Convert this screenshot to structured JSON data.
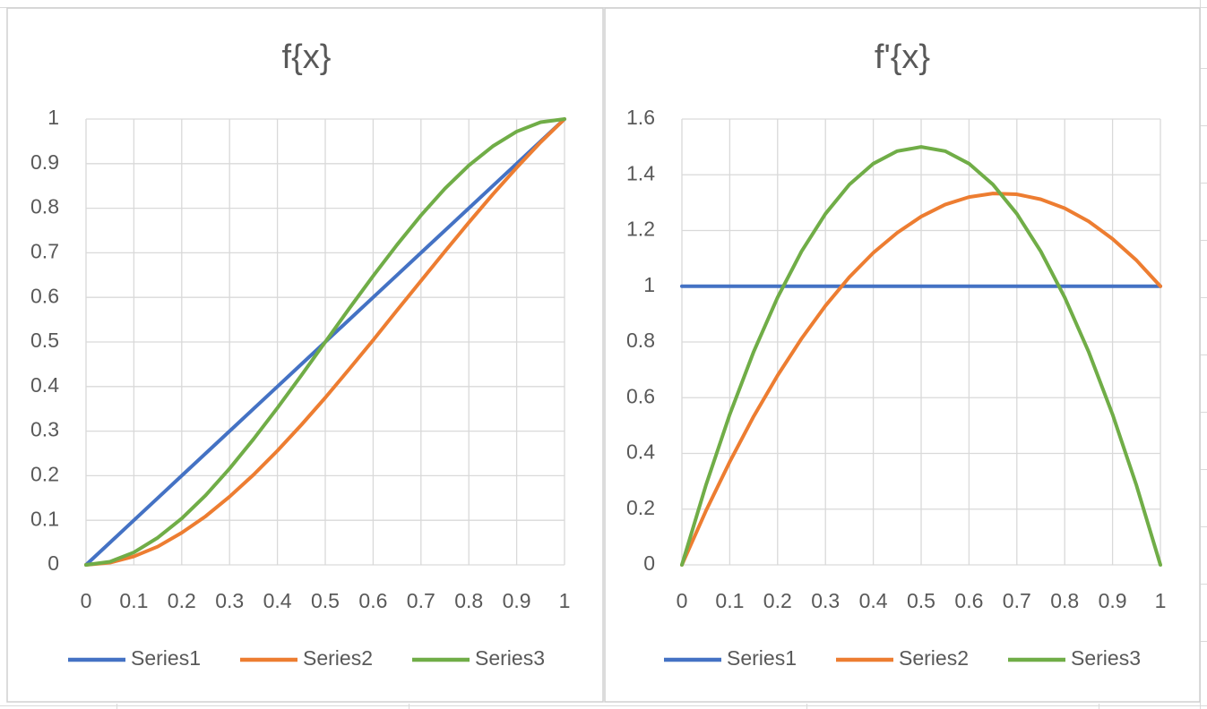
{
  "chart_data": [
    {
      "type": "line",
      "title": "f{x}",
      "xlabel": "",
      "ylabel": "",
      "xlim": [
        0,
        1
      ],
      "ylim": [
        0,
        1
      ],
      "x_ticks": [
        "0",
        "0.1",
        "0.2",
        "0.3",
        "0.4",
        "0.5",
        "0.6",
        "0.7",
        "0.8",
        "0.9",
        "1"
      ],
      "y_ticks": [
        "0",
        "0.1",
        "0.2",
        "0.3",
        "0.4",
        "0.5",
        "0.6",
        "0.7",
        "0.8",
        "0.9",
        "1"
      ],
      "grid": true,
      "legend_position": "bottom",
      "x": [
        0,
        0.05,
        0.1,
        0.15,
        0.2,
        0.25,
        0.3,
        0.35,
        0.4,
        0.45,
        0.5,
        0.55,
        0.6,
        0.65,
        0.7,
        0.75,
        0.8,
        0.85,
        0.9,
        0.95,
        1
      ],
      "series": [
        {
          "name": "Series1",
          "color": "#4472C4",
          "values": [
            0,
            0.05,
            0.1,
            0.15,
            0.2,
            0.25,
            0.3,
            0.35,
            0.4,
            0.45,
            0.5,
            0.55,
            0.6,
            0.65,
            0.7,
            0.75,
            0.8,
            0.85,
            0.9,
            0.95,
            1
          ]
        },
        {
          "name": "Series2",
          "color": "#ED7D31",
          "values": [
            0,
            0.005,
            0.019,
            0.041,
            0.072,
            0.109,
            0.153,
            0.202,
            0.256,
            0.314,
            0.375,
            0.439,
            0.504,
            0.571,
            0.637,
            0.703,
            0.768,
            0.831,
            0.891,
            0.948,
            1
          ]
        },
        {
          "name": "Series3",
          "color": "#70AD47",
          "values": [
            0,
            0.007,
            0.028,
            0.061,
            0.104,
            0.156,
            0.216,
            0.282,
            0.352,
            0.425,
            0.5,
            0.575,
            0.648,
            0.718,
            0.784,
            0.844,
            0.896,
            0.939,
            0.972,
            0.993,
            1
          ]
        }
      ]
    },
    {
      "type": "line",
      "title": "f'{x}",
      "xlabel": "",
      "ylabel": "",
      "xlim": [
        0,
        1
      ],
      "ylim": [
        0,
        1.6
      ],
      "x_ticks": [
        "0",
        "0.1",
        "0.2",
        "0.3",
        "0.4",
        "0.5",
        "0.6",
        "0.7",
        "0.8",
        "0.9",
        "1"
      ],
      "y_ticks": [
        "0",
        "0.2",
        "0.4",
        "0.6",
        "0.8",
        "1",
        "1.2",
        "1.4",
        "1.6"
      ],
      "grid": true,
      "legend_position": "bottom",
      "x": [
        0,
        0.05,
        0.1,
        0.15,
        0.2,
        0.25,
        0.3,
        0.35,
        0.4,
        0.45,
        0.5,
        0.55,
        0.6,
        0.65,
        0.7,
        0.75,
        0.8,
        0.85,
        0.9,
        0.95,
        1
      ],
      "series": [
        {
          "name": "Series1",
          "color": "#4472C4",
          "values": [
            1,
            1,
            1,
            1,
            1,
            1,
            1,
            1,
            1,
            1,
            1,
            1,
            1,
            1,
            1,
            1,
            1,
            1,
            1,
            1,
            1
          ]
        },
        {
          "name": "Series2",
          "color": "#ED7D31",
          "values": [
            0,
            0.193,
            0.37,
            0.533,
            0.68,
            0.812,
            0.93,
            1.033,
            1.12,
            1.192,
            1.25,
            1.293,
            1.32,
            1.333,
            1.33,
            1.312,
            1.28,
            1.233,
            1.17,
            1.093,
            1
          ]
        },
        {
          "name": "Series3",
          "color": "#70AD47",
          "values": [
            0,
            0.285,
            0.54,
            0.765,
            0.96,
            1.125,
            1.26,
            1.365,
            1.44,
            1.485,
            1.5,
            1.485,
            1.44,
            1.365,
            1.26,
            1.125,
            0.96,
            0.765,
            0.54,
            0.285,
            0
          ]
        }
      ]
    }
  ]
}
